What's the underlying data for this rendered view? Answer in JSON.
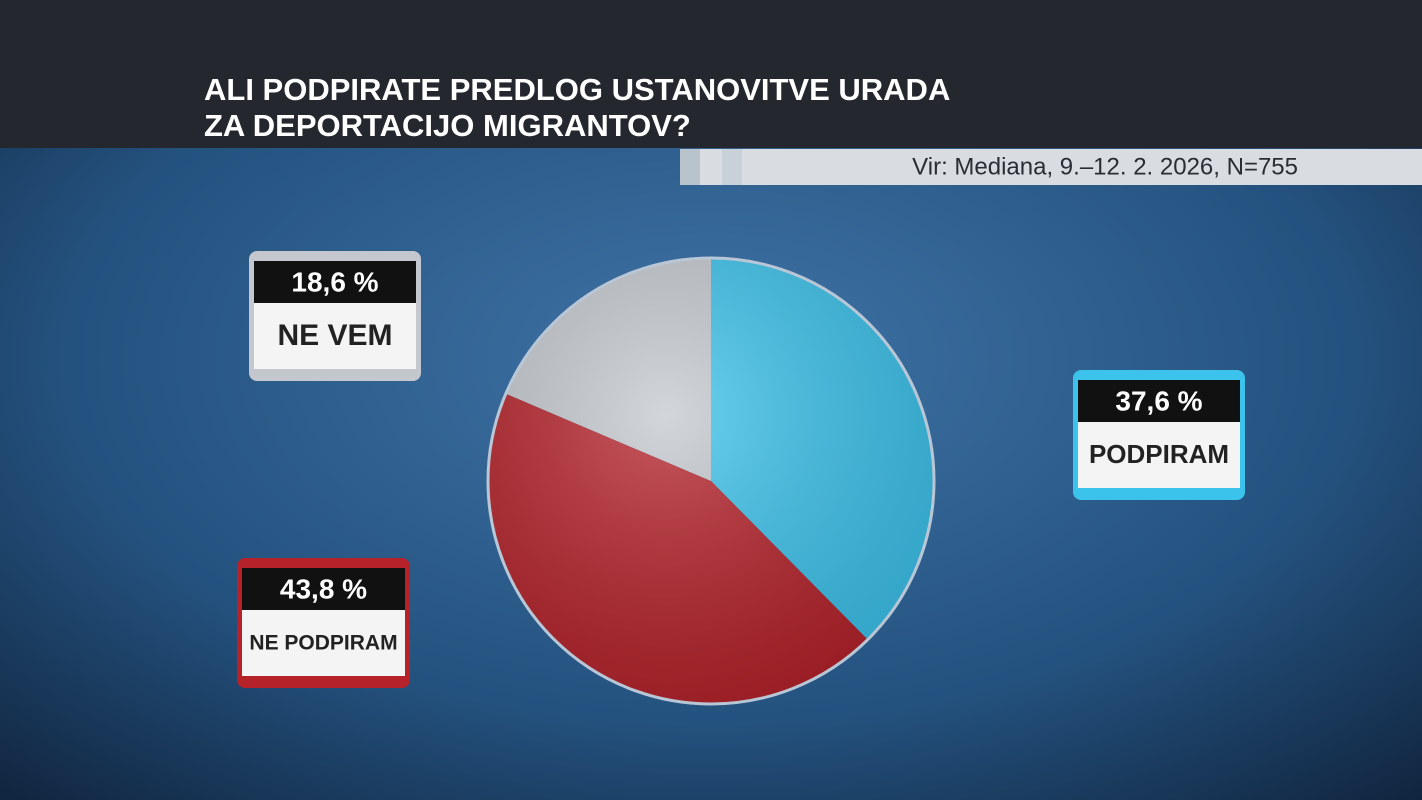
{
  "chart_data": {
    "type": "pie",
    "title": [
      "ALI PODPIRATE PREDLOG USTANOVITVE URADA",
      "ZA DEPORTACIJO MIGRANTOV?"
    ],
    "source": "Vir: Mediana, 9.–12. 2. 2026, N=755",
    "categories": [
      "PODPIRAM",
      "NE PODPIRAM",
      "NE VEM"
    ],
    "values": [
      37.6,
      43.8,
      18.6
    ],
    "value_labels": [
      "37,6 %",
      "43,8 %",
      "18,6 %"
    ],
    "colors": [
      "#3cc3ec",
      "#b5222a",
      "#c4c8ce"
    ]
  }
}
